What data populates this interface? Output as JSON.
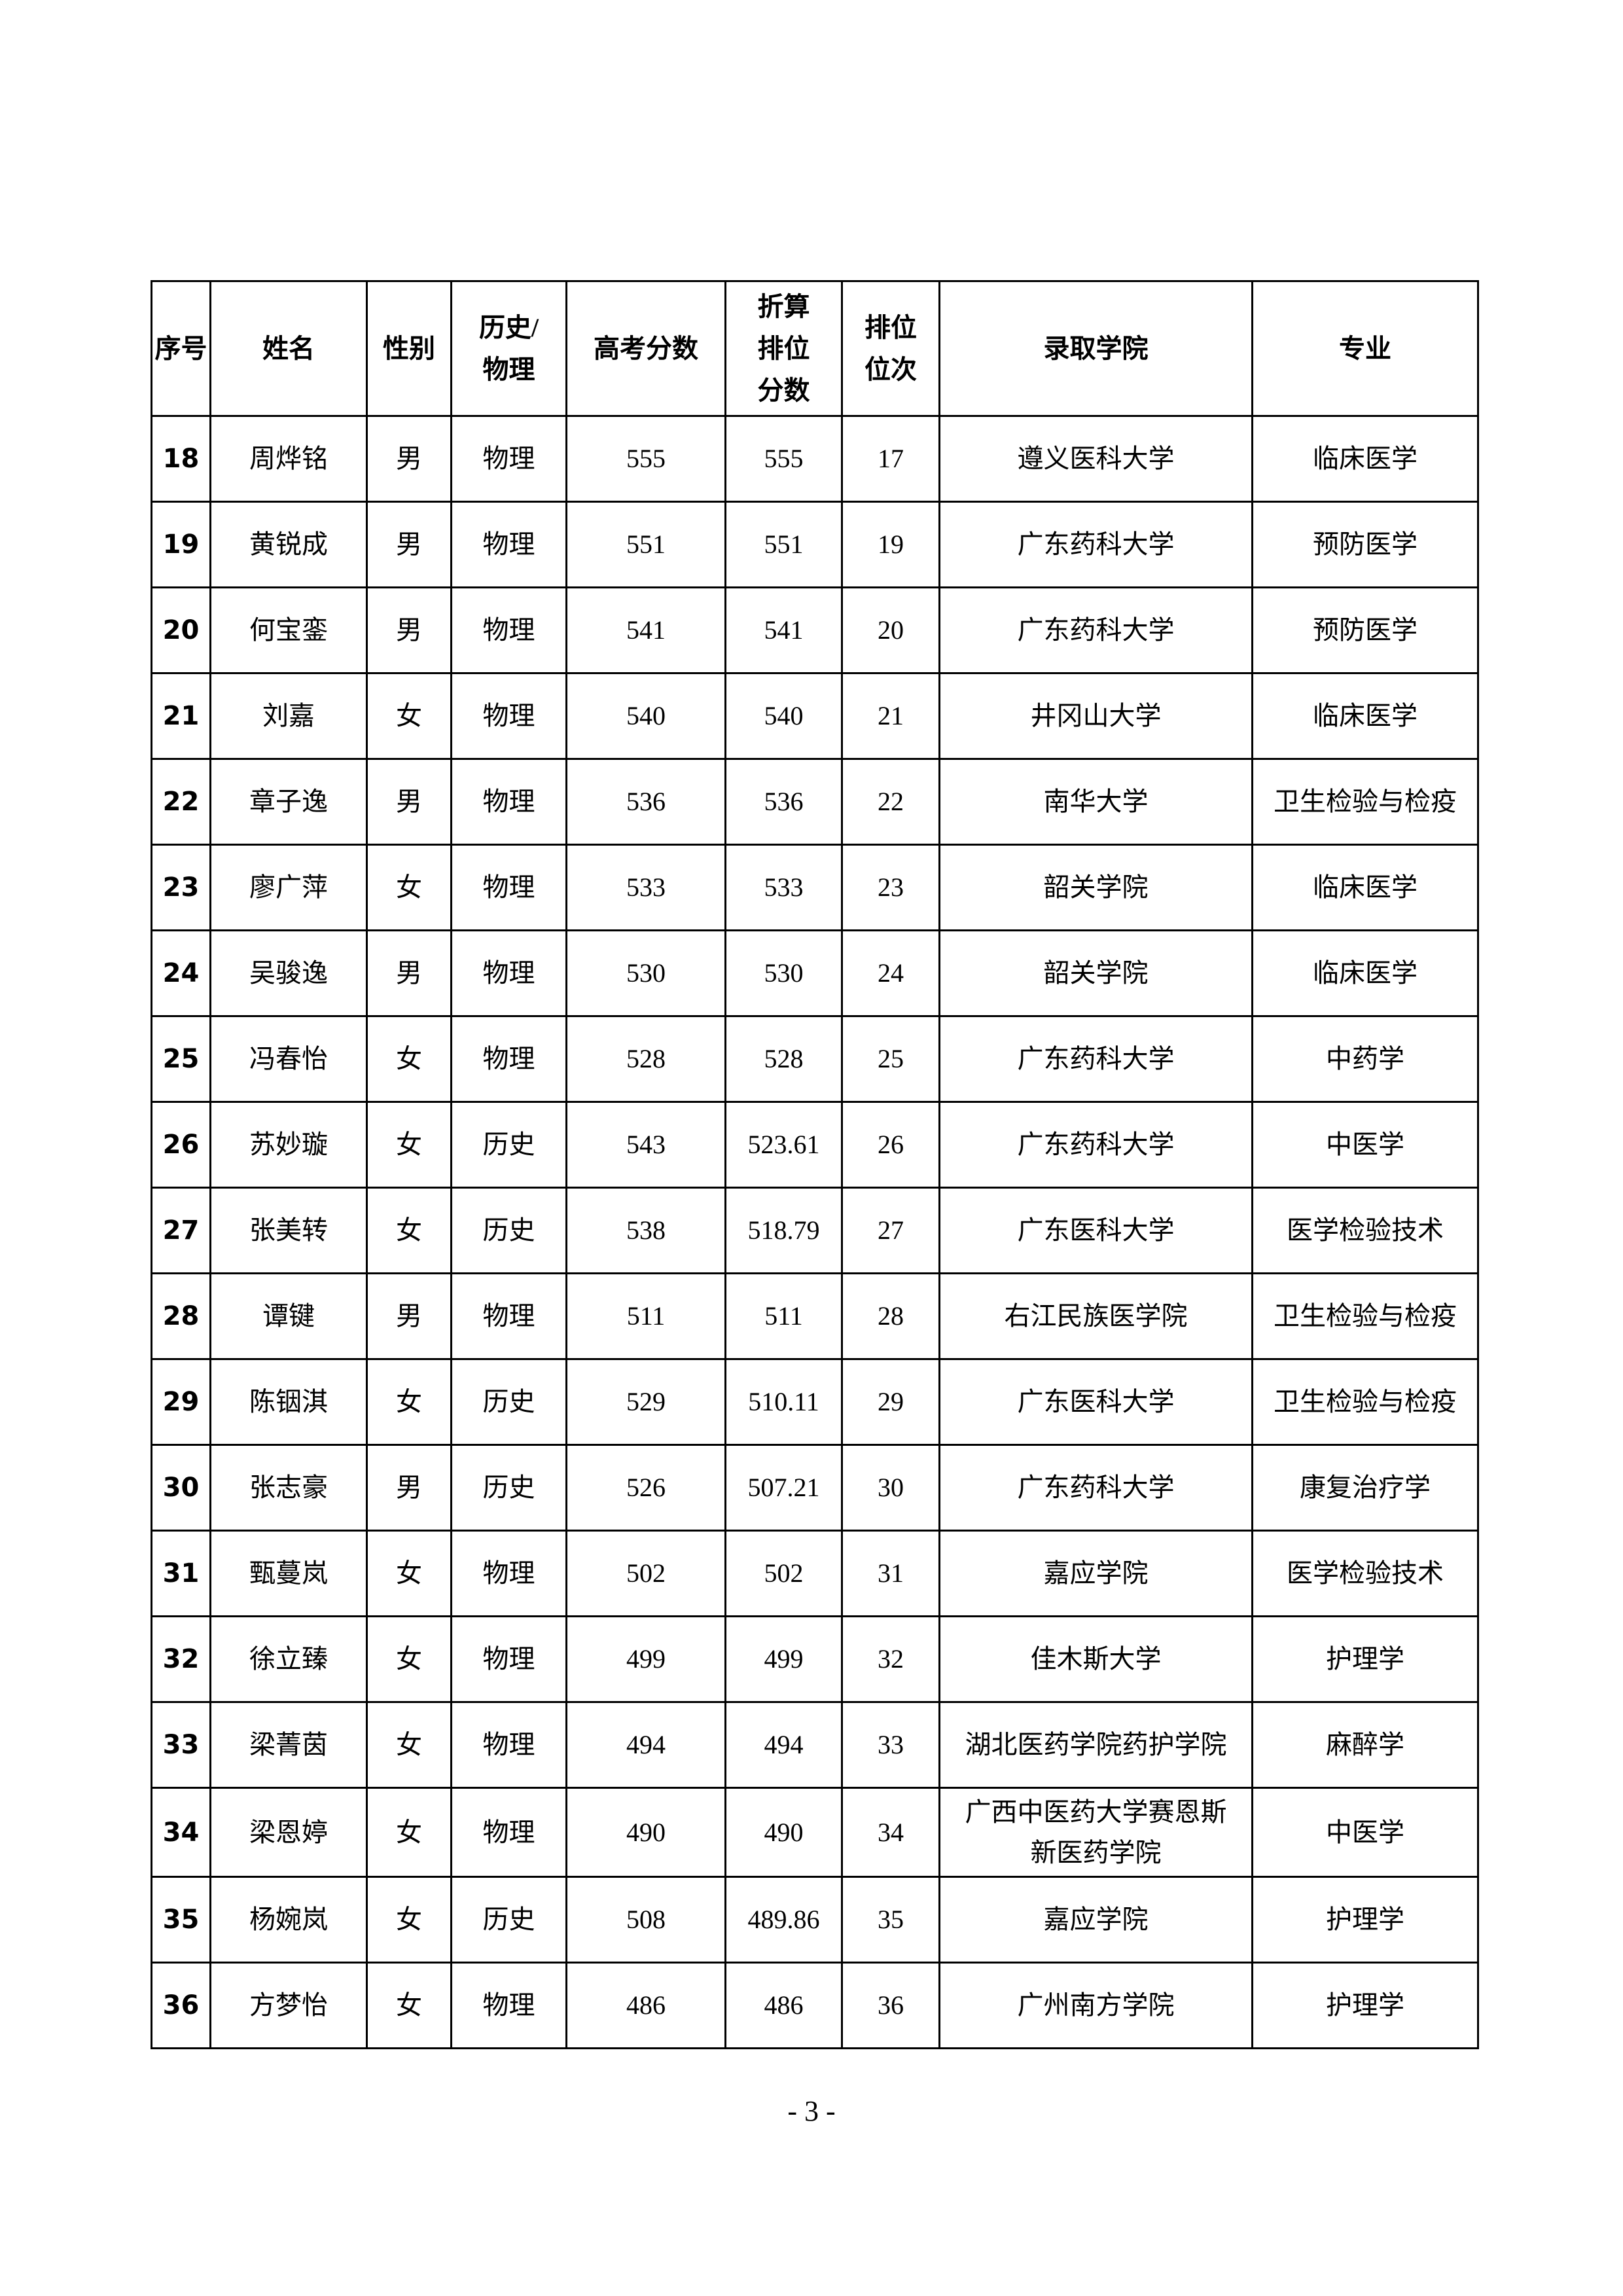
{
  "table": {
    "headers": [
      "序号",
      "姓名",
      "性别",
      "历史/物理",
      "高考分数",
      "折算排位分数",
      "排位位次",
      "录取学院",
      "专业"
    ],
    "header_lines": [
      [
        "序号"
      ],
      [
        "姓名"
      ],
      [
        "性别"
      ],
      [
        "历史",
        "/物理"
      ],
      [
        "高考分数"
      ],
      [
        "折算",
        "排位",
        "分数"
      ],
      [
        "排位",
        "位次"
      ],
      [
        "录取学院"
      ],
      [
        "专业"
      ]
    ],
    "rows": [
      [
        "18",
        "周烨铭",
        "男",
        "物理",
        "555",
        "555",
        "17",
        "遵义医科大学",
        "临床医学"
      ],
      [
        "19",
        "黄锐成",
        "男",
        "物理",
        "551",
        "551",
        "19",
        "广东药科大学",
        "预防医学"
      ],
      [
        "20",
        "何宝銮",
        "男",
        "物理",
        "541",
        "541",
        "20",
        "广东药科大学",
        "预防医学"
      ],
      [
        "21",
        "刘嘉",
        "女",
        "物理",
        "540",
        "540",
        "21",
        "井冈山大学",
        "临床医学"
      ],
      [
        "22",
        "章子逸",
        "男",
        "物理",
        "536",
        "536",
        "22",
        "南华大学",
        "卫生检验与检疫"
      ],
      [
        "23",
        "廖广萍",
        "女",
        "物理",
        "533",
        "533",
        "23",
        "韶关学院",
        "临床医学"
      ],
      [
        "24",
        "吴骏逸",
        "男",
        "物理",
        "530",
        "530",
        "24",
        "韶关学院",
        "临床医学"
      ],
      [
        "25",
        "冯春怡",
        "女",
        "物理",
        "528",
        "528",
        "25",
        "广东药科大学",
        "中药学"
      ],
      [
        "26",
        "苏妙璇",
        "女",
        "历史",
        "543",
        "523.61",
        "26",
        "广东药科大学",
        "中医学"
      ],
      [
        "27",
        "张美转",
        "女",
        "历史",
        "538",
        "518.79",
        "27",
        "广东医科大学",
        "医学检验技术"
      ],
      [
        "28",
        "谭键",
        "男",
        "物理",
        "511",
        "511",
        "28",
        "右江民族医学院",
        "卫生检验与检疫"
      ],
      [
        "29",
        "陈铟淇",
        "女",
        "历史",
        "529",
        "510.11",
        "29",
        "广东医科大学",
        "卫生检验与检疫"
      ],
      [
        "30",
        "张志豪",
        "男",
        "历史",
        "526",
        "507.21",
        "30",
        "广东药科大学",
        "康复治疗学"
      ],
      [
        "31",
        "甄蔓岚",
        "女",
        "物理",
        "502",
        "502",
        "31",
        "嘉应学院",
        "医学检验技术"
      ],
      [
        "32",
        "徐立臻",
        "女",
        "物理",
        "499",
        "499",
        "32",
        "佳木斯大学",
        "护理学"
      ],
      [
        "33",
        "梁菁茵",
        "女",
        "物理",
        "494",
        "494",
        "33",
        "湖北医药学院药护学院",
        "麻醉学"
      ],
      [
        "34",
        "梁恩婷",
        "女",
        "物理",
        "490",
        "490",
        "34",
        "广西中医药大学赛恩斯新医药学院",
        "中医学"
      ],
      [
        "35",
        "杨婉岚",
        "女",
        "历史",
        "508",
        "489.86",
        "35",
        "嘉应学院",
        "护理学"
      ],
      [
        "36",
        "方梦怡",
        "女",
        "物理",
        "486",
        "486",
        "36",
        "广州南方学院",
        "护理学"
      ]
    ]
  },
  "page_number": "- 3 -"
}
